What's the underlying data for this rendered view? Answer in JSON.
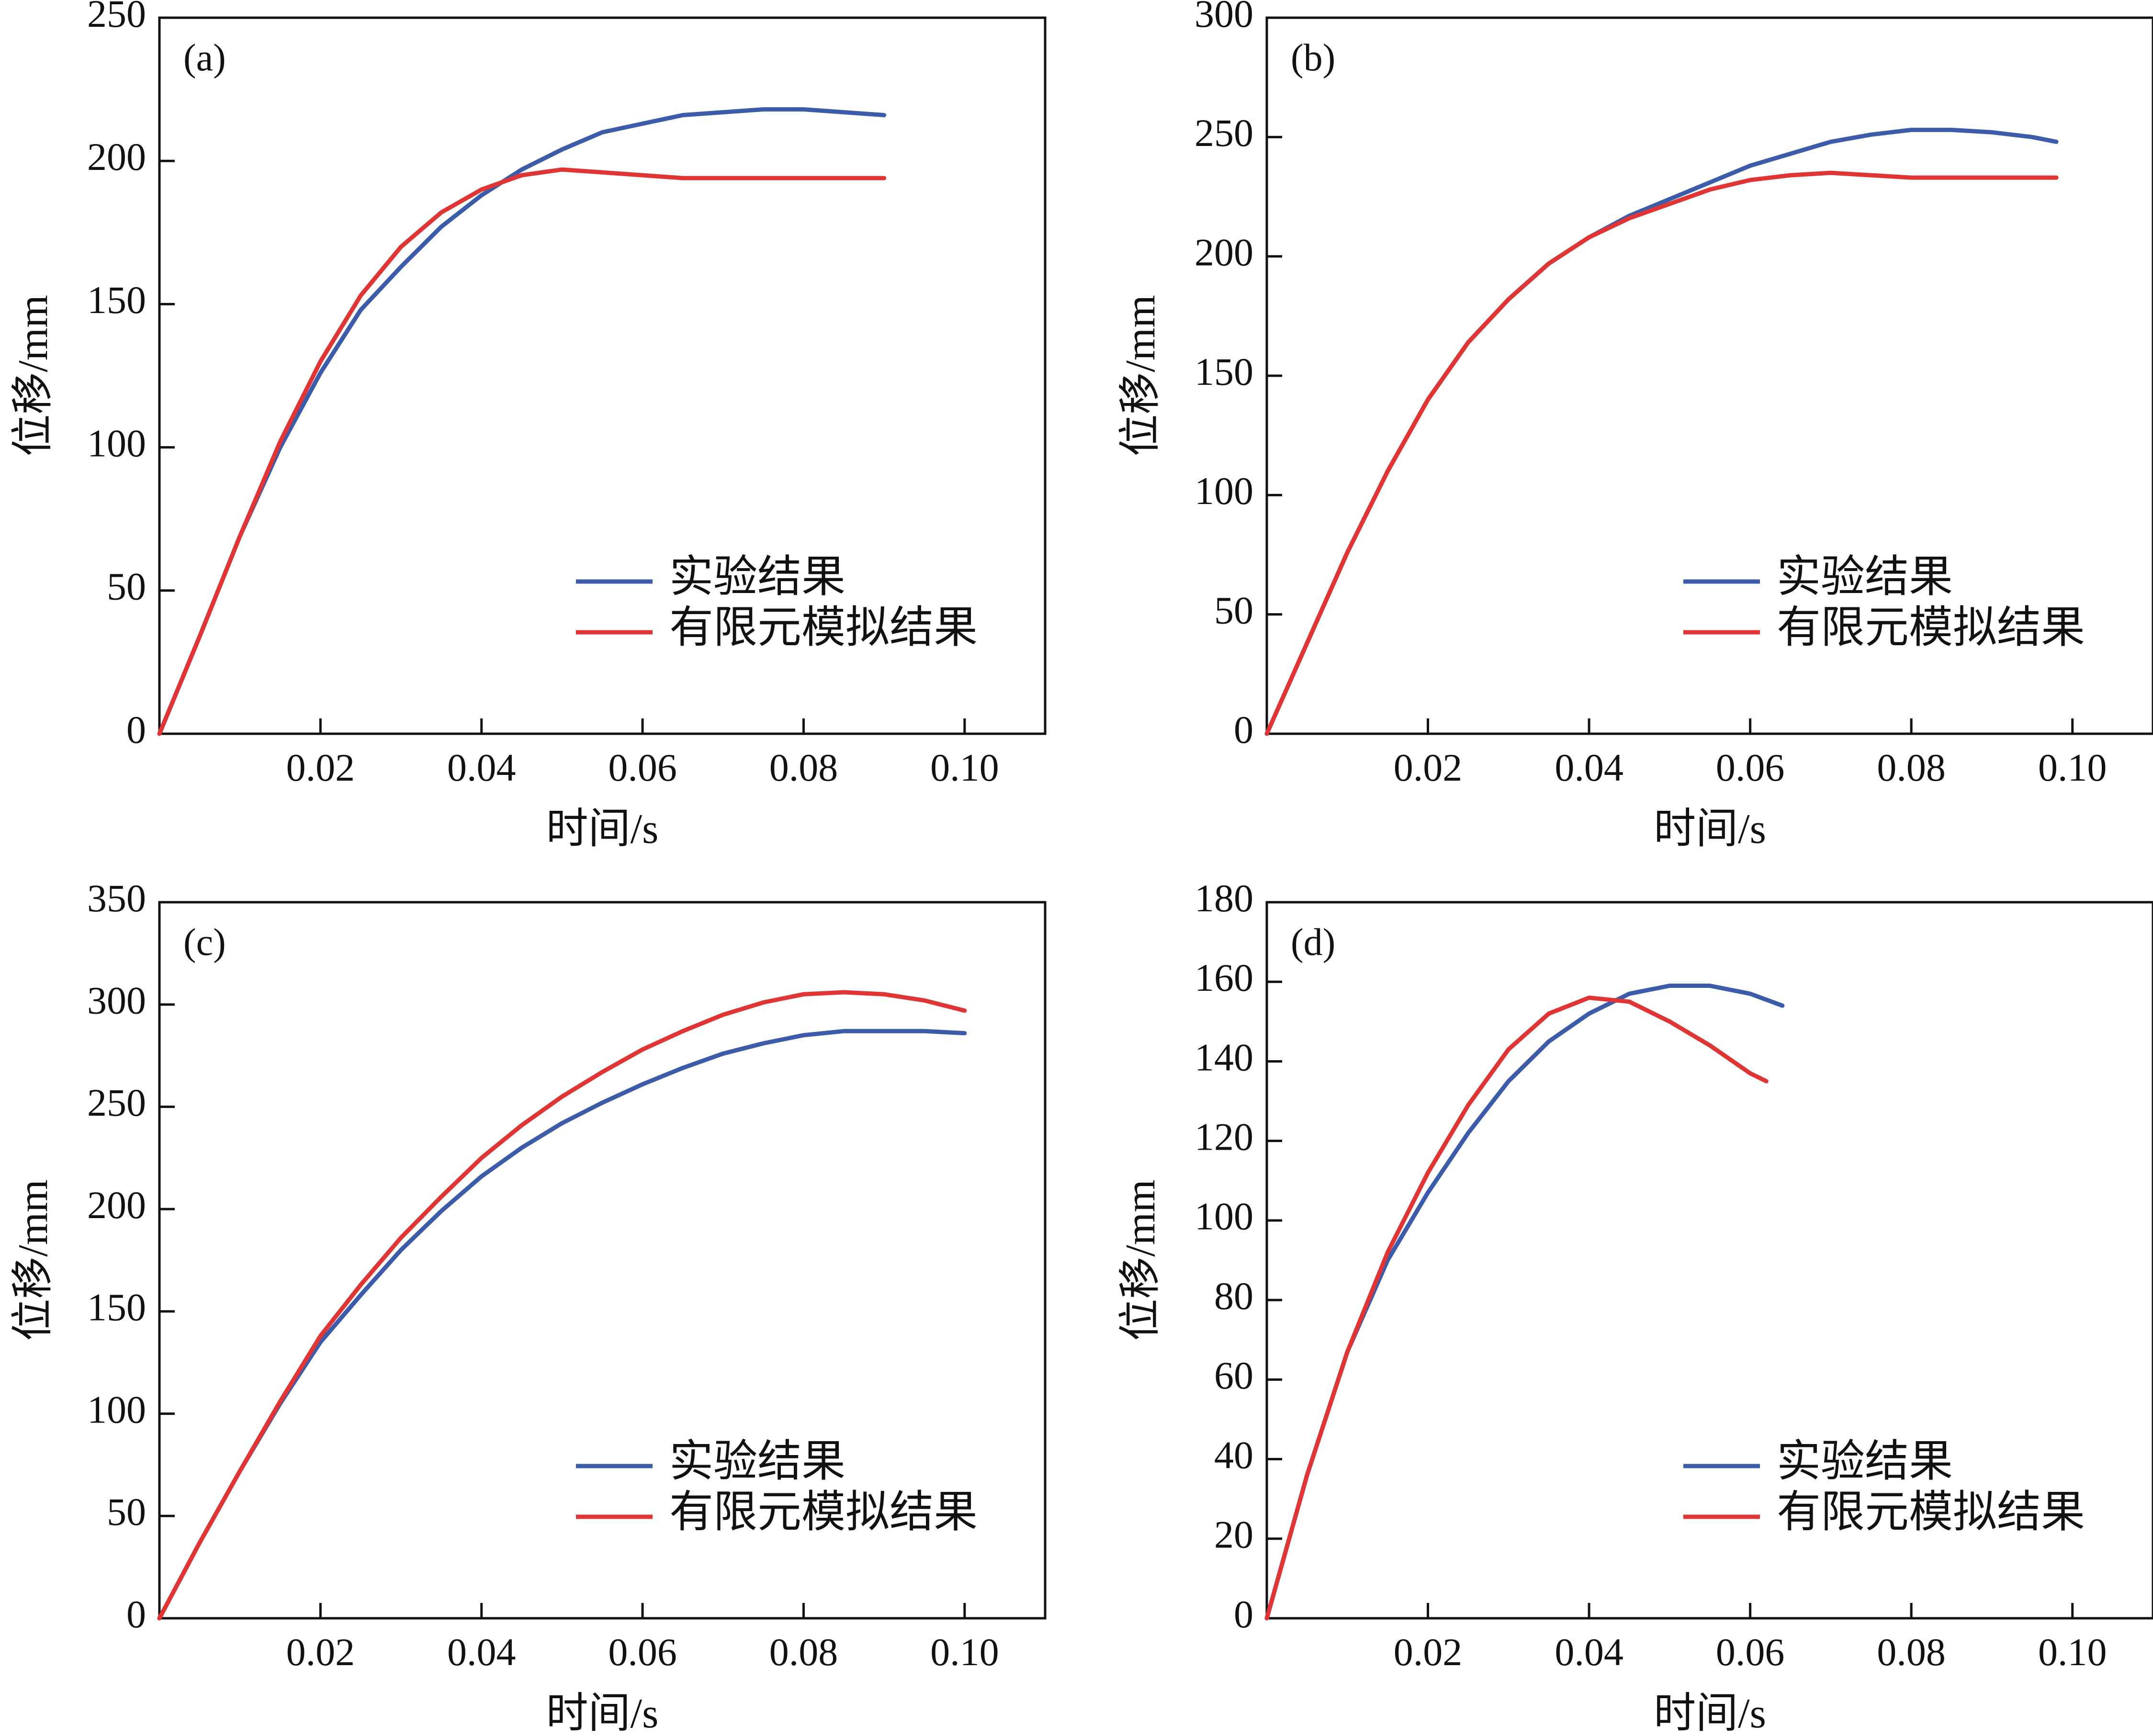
{
  "chart_data": [
    {
      "type": "line",
      "panel_label": "(a)",
      "xlabel": "时间/s",
      "ylabel": "位移/mm",
      "xlim": [
        0,
        0.11
      ],
      "ylim": [
        0,
        250
      ],
      "xticks": [
        0.02,
        0.04,
        0.06,
        0.08,
        0.1
      ],
      "xtick_labels": [
        "0.02",
        "0.04",
        "0.06",
        "0.08",
        "0.10"
      ],
      "yticks": [
        0,
        50,
        100,
        150,
        200,
        250
      ],
      "ytick_labels": [
        "0",
        "50",
        "100",
        "150",
        "200",
        "250"
      ],
      "legend_position": "lower-right",
      "series": [
        {
          "name": "实验结果",
          "color": "#3c5ba8",
          "x": [
            0,
            0.005,
            0.01,
            0.015,
            0.02,
            0.025,
            0.03,
            0.035,
            0.04,
            0.045,
            0.05,
            0.055,
            0.06,
            0.065,
            0.07,
            0.075,
            0.08,
            0.085,
            0.09
          ],
          "y": [
            0,
            34,
            69,
            100,
            126,
            148,
            163,
            177,
            188,
            197,
            204,
            210,
            213,
            216,
            217,
            218,
            218,
            217,
            216
          ]
        },
        {
          "name": "有限元模拟结果",
          "color": "#e03535",
          "x": [
            0,
            0.005,
            0.01,
            0.015,
            0.02,
            0.025,
            0.03,
            0.035,
            0.04,
            0.045,
            0.05,
            0.055,
            0.06,
            0.065,
            0.07,
            0.08,
            0.09
          ],
          "y": [
            0,
            34,
            69,
            102,
            130,
            153,
            170,
            182,
            190,
            195,
            197,
            196,
            195,
            194,
            194,
            194,
            194
          ]
        }
      ]
    },
    {
      "type": "line",
      "panel_label": "(b)",
      "xlabel": "时间/s",
      "ylabel": "位移/mm",
      "xlim": [
        0,
        0.11
      ],
      "ylim": [
        0,
        300
      ],
      "xticks": [
        0.02,
        0.04,
        0.06,
        0.08,
        0.1
      ],
      "xtick_labels": [
        "0.02",
        "0.04",
        "0.06",
        "0.08",
        "0.10"
      ],
      "yticks": [
        0,
        50,
        100,
        150,
        200,
        250,
        300
      ],
      "ytick_labels": [
        "0",
        "50",
        "100",
        "150",
        "200",
        "250",
        "300"
      ],
      "legend_position": "lower-right",
      "series": [
        {
          "name": "实验结果",
          "color": "#3c5ba8",
          "x": [
            0,
            0.005,
            0.01,
            0.015,
            0.02,
            0.025,
            0.03,
            0.035,
            0.04,
            0.045,
            0.05,
            0.055,
            0.06,
            0.065,
            0.07,
            0.075,
            0.08,
            0.085,
            0.09,
            0.095,
            0.098
          ],
          "y": [
            0,
            38,
            76,
            110,
            140,
            164,
            182,
            197,
            208,
            217,
            224,
            231,
            238,
            243,
            248,
            251,
            253,
            253,
            252,
            250,
            248
          ]
        },
        {
          "name": "有限元模拟结果",
          "color": "#e03535",
          "x": [
            0,
            0.005,
            0.01,
            0.015,
            0.02,
            0.025,
            0.03,
            0.035,
            0.04,
            0.045,
            0.05,
            0.055,
            0.06,
            0.065,
            0.07,
            0.075,
            0.08,
            0.09,
            0.098
          ],
          "y": [
            0,
            38,
            76,
            110,
            140,
            164,
            182,
            197,
            208,
            216,
            222,
            228,
            232,
            234,
            235,
            234,
            233,
            233,
            233
          ]
        }
      ]
    },
    {
      "type": "line",
      "panel_label": "(c)",
      "xlabel": "时间/s",
      "ylabel": "位移/mm",
      "xlim": [
        0,
        0.11
      ],
      "ylim": [
        0,
        350
      ],
      "xticks": [
        0.02,
        0.04,
        0.06,
        0.08,
        0.1
      ],
      "xtick_labels": [
        "0.02",
        "0.04",
        "0.06",
        "0.08",
        "0.10"
      ],
      "yticks": [
        0,
        50,
        100,
        150,
        200,
        250,
        300,
        350
      ],
      "ytick_labels": [
        "0",
        "50",
        "100",
        "150",
        "200",
        "250",
        "300",
        "350"
      ],
      "legend_position": "lower-right",
      "series": [
        {
          "name": "实验结果",
          "color": "#3c5ba8",
          "x": [
            0,
            0.005,
            0.01,
            0.015,
            0.02,
            0.025,
            0.03,
            0.035,
            0.04,
            0.045,
            0.05,
            0.055,
            0.06,
            0.065,
            0.07,
            0.075,
            0.08,
            0.085,
            0.09,
            0.095,
            0.1
          ],
          "y": [
            0,
            37,
            72,
            105,
            135,
            158,
            180,
            199,
            216,
            230,
            242,
            252,
            261,
            269,
            276,
            281,
            285,
            287,
            287,
            287,
            286
          ]
        },
        {
          "name": "有限元模拟结果",
          "color": "#e03535",
          "x": [
            0,
            0.005,
            0.01,
            0.015,
            0.02,
            0.025,
            0.03,
            0.035,
            0.04,
            0.045,
            0.05,
            0.055,
            0.06,
            0.065,
            0.07,
            0.075,
            0.08,
            0.085,
            0.09,
            0.095,
            0.1
          ],
          "y": [
            0,
            37,
            72,
            106,
            138,
            163,
            186,
            206,
            225,
            241,
            255,
            267,
            278,
            287,
            295,
            301,
            305,
            306,
            305,
            302,
            297
          ]
        }
      ]
    },
    {
      "type": "line",
      "panel_label": "(d)",
      "xlabel": "时间/s",
      "ylabel": "位移/mm",
      "xlim": [
        0,
        0.11
      ],
      "ylim": [
        0,
        180
      ],
      "xticks": [
        0.02,
        0.04,
        0.06,
        0.08,
        0.1
      ],
      "xtick_labels": [
        "0.02",
        "0.04",
        "0.06",
        "0.08",
        "0.10"
      ],
      "yticks": [
        0,
        20,
        40,
        60,
        80,
        100,
        120,
        140,
        160,
        180
      ],
      "ytick_labels": [
        "0",
        "20",
        "40",
        "60",
        "80",
        "100",
        "120",
        "140",
        "160",
        "180"
      ],
      "legend_position": "lower-right",
      "series": [
        {
          "name": "实验结果",
          "color": "#3c5ba8",
          "x": [
            0,
            0.005,
            0.01,
            0.015,
            0.02,
            0.025,
            0.03,
            0.035,
            0.04,
            0.045,
            0.05,
            0.055,
            0.06,
            0.064
          ],
          "y": [
            0,
            36,
            67,
            90,
            107,
            122,
            135,
            145,
            152,
            157,
            159,
            159,
            157,
            154
          ]
        },
        {
          "name": "有限元模拟结果",
          "color": "#e03535",
          "x": [
            0,
            0.005,
            0.01,
            0.015,
            0.02,
            0.025,
            0.03,
            0.035,
            0.04,
            0.045,
            0.05,
            0.055,
            0.06,
            0.062
          ],
          "y": [
            0,
            36,
            67,
            92,
            112,
            129,
            143,
            152,
            156,
            155,
            150,
            144,
            137,
            135
          ]
        }
      ]
    }
  ]
}
